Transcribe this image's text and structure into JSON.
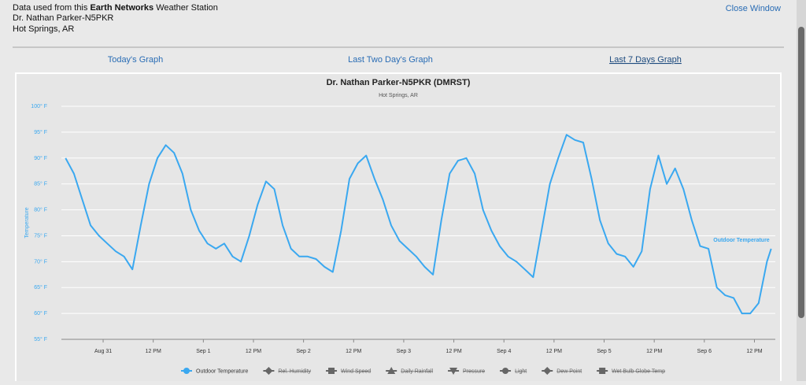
{
  "header": {
    "prefix": "Data used from this ",
    "brand": "Earth Networks",
    "suffix": " Weather Station",
    "station": "Dr. Nathan Parker-N5PKR",
    "location": "Hot Springs, AR",
    "close": "Close Window"
  },
  "tabs": [
    "Today's Graph",
    "Last Two Day's Graph",
    "Last 7 Days Graph"
  ],
  "chart_data": {
    "type": "line",
    "title": "Dr. Nathan Parker-N5PKR (DMRST)",
    "subtitle": "Hot Springs, AR",
    "y_label": "Temperature",
    "grid": true,
    "ylim": [
      55,
      100
    ],
    "yticks": [
      {
        "value": 55,
        "label": "55° F"
      },
      {
        "value": 60,
        "label": "60° F"
      },
      {
        "value": 65,
        "label": "65° F"
      },
      {
        "value": 70,
        "label": "70° F"
      },
      {
        "value": 75,
        "label": "75° F"
      },
      {
        "value": 80,
        "label": "80° F"
      },
      {
        "value": 85,
        "label": "85° F"
      },
      {
        "value": 90,
        "label": "90° F"
      },
      {
        "value": 95,
        "label": "95° F"
      },
      {
        "value": 100,
        "label": "100° F"
      }
    ],
    "xlim": [
      -10,
      161
    ],
    "xticks": [
      {
        "value": 0,
        "label": "Aug 31"
      },
      {
        "value": 12,
        "label": "12 PM"
      },
      {
        "value": 24,
        "label": "Sep 1"
      },
      {
        "value": 36,
        "label": "12 PM"
      },
      {
        "value": 48,
        "label": "Sep 2"
      },
      {
        "value": 60,
        "label": "12 PM"
      },
      {
        "value": 72,
        "label": "Sep 3"
      },
      {
        "value": 84,
        "label": "12 PM"
      },
      {
        "value": 96,
        "label": "Sep 4"
      },
      {
        "value": 108,
        "label": "12 PM"
      },
      {
        "value": 120,
        "label": "Sep 5"
      },
      {
        "value": 132,
        "label": "12 PM"
      },
      {
        "value": 144,
        "label": "Sep 6"
      },
      {
        "value": 156,
        "label": "12 PM"
      }
    ],
    "x": [
      -9,
      -7,
      -5,
      -3,
      -1,
      1,
      3,
      5,
      7,
      9,
      11,
      13,
      15,
      17,
      19,
      21,
      23,
      25,
      27,
      29,
      31,
      33,
      35,
      37,
      39,
      41,
      43,
      45,
      47,
      49,
      51,
      53,
      55,
      57,
      59,
      61,
      63,
      65,
      67,
      69,
      71,
      73,
      75,
      77,
      79,
      81,
      83,
      85,
      87,
      89,
      91,
      93,
      95,
      97,
      99,
      101,
      103,
      105,
      107,
      109,
      111,
      113,
      115,
      117,
      119,
      121,
      123,
      125,
      127,
      129,
      131,
      133,
      135,
      137,
      139,
      141,
      143,
      145,
      147,
      149,
      151,
      153,
      155,
      157,
      159,
      160
    ],
    "series": [
      {
        "name": "Outdoor Temperature",
        "color": "#3aa8f0",
        "values": [
          90,
          87,
          82,
          77,
          75,
          73.5,
          72,
          71,
          68.5,
          77,
          85,
          90,
          92.5,
          91,
          87,
          80,
          76,
          73.5,
          72.5,
          73.5,
          71,
          70,
          75,
          81,
          85.5,
          84,
          77,
          72.5,
          71,
          71,
          70.5,
          69,
          68,
          76,
          86,
          89,
          90.5,
          86,
          82,
          77,
          74,
          72.5,
          71,
          69,
          67.5,
          78,
          87,
          89.5,
          90,
          87,
          80,
          76,
          73,
          71,
          70,
          68.5,
          67,
          76,
          85,
          90,
          94.5,
          93.5,
          93,
          86,
          78,
          73.5,
          71.5,
          71,
          69,
          72,
          84,
          90.5,
          85,
          88,
          84,
          78,
          73,
          72.5,
          65,
          63.5,
          63,
          60,
          60,
          62,
          70,
          72.5
        ]
      }
    ],
    "legend_hidden": [
      "Rel. Humidity",
      "Wind Speed",
      "Daily Rainfall",
      "Pressure",
      "Light",
      "Dew Point",
      "Wet Bulb Globe Temp"
    ]
  }
}
